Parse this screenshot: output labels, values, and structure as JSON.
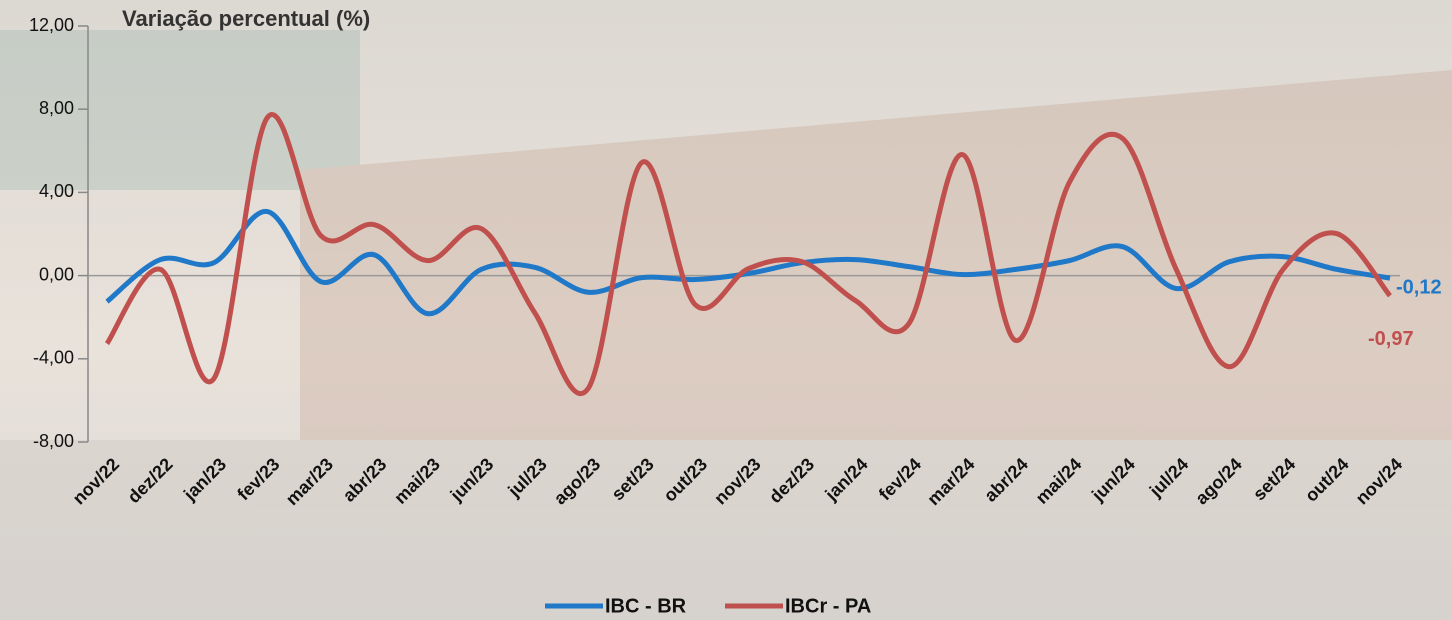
{
  "chart_data": {
    "type": "line",
    "title": "Variação percentual (%)",
    "categories": [
      "nov/22",
      "dez/22",
      "jan/23",
      "fev/23",
      "mar/23",
      "abr/23",
      "mai/23",
      "jun/23",
      "jul/23",
      "ago/23",
      "set/23",
      "out/23",
      "nov/23",
      "dez/23",
      "jan/24",
      "fev/24",
      "mar/24",
      "abr/24",
      "mai/24",
      "jun/24",
      "jul/24",
      "ago/24",
      "set/24",
      "out/24",
      "nov/24"
    ],
    "series": [
      {
        "name": "IBC - BR",
        "color": "#1f78c8",
        "values": [
          -1.25,
          0.77,
          0.62,
          3.08,
          -0.29,
          1.0,
          -1.83,
          0.3,
          0.4,
          -0.8,
          -0.1,
          -0.19,
          0.1,
          0.62,
          0.77,
          0.43,
          0.05,
          0.3,
          0.72,
          1.39,
          -0.62,
          0.67,
          0.91,
          0.3,
          -0.12
        ],
        "value_labels": [
          null,
          null,
          null,
          null,
          null,
          null,
          null,
          null,
          null,
          null,
          null,
          null,
          null,
          null,
          null,
          null,
          null,
          null,
          null,
          null,
          null,
          null,
          null,
          null,
          "-0,12"
        ]
      },
      {
        "name": "IBCr - PA",
        "color": "#c0504d",
        "values": [
          -3.27,
          0.3,
          -4.95,
          7.6,
          1.92,
          2.45,
          0.72,
          2.26,
          -1.78,
          -5.43,
          5.43,
          -1.39,
          0.34,
          0.67,
          -1.2,
          -2.31,
          5.82,
          -3.12,
          4.47,
          6.59,
          0.3,
          -4.38,
          0.3,
          2.02,
          -0.97
        ],
        "value_labels": [
          null,
          null,
          null,
          null,
          null,
          null,
          null,
          null,
          null,
          null,
          null,
          null,
          null,
          null,
          null,
          null,
          null,
          null,
          null,
          null,
          null,
          null,
          null,
          null,
          "-0,97"
        ]
      }
    ],
    "ylim": [
      -8,
      12
    ],
    "yticks": [
      {
        "value": -8,
        "label": "-8,00"
      },
      {
        "value": -4,
        "label": "-4,00"
      },
      {
        "value": 0,
        "label": "0,00"
      },
      {
        "value": 4,
        "label": "4,00"
      },
      {
        "value": 8,
        "label": "8,00"
      },
      {
        "value": 12,
        "label": "12,00"
      }
    ],
    "legend": "bottom"
  }
}
